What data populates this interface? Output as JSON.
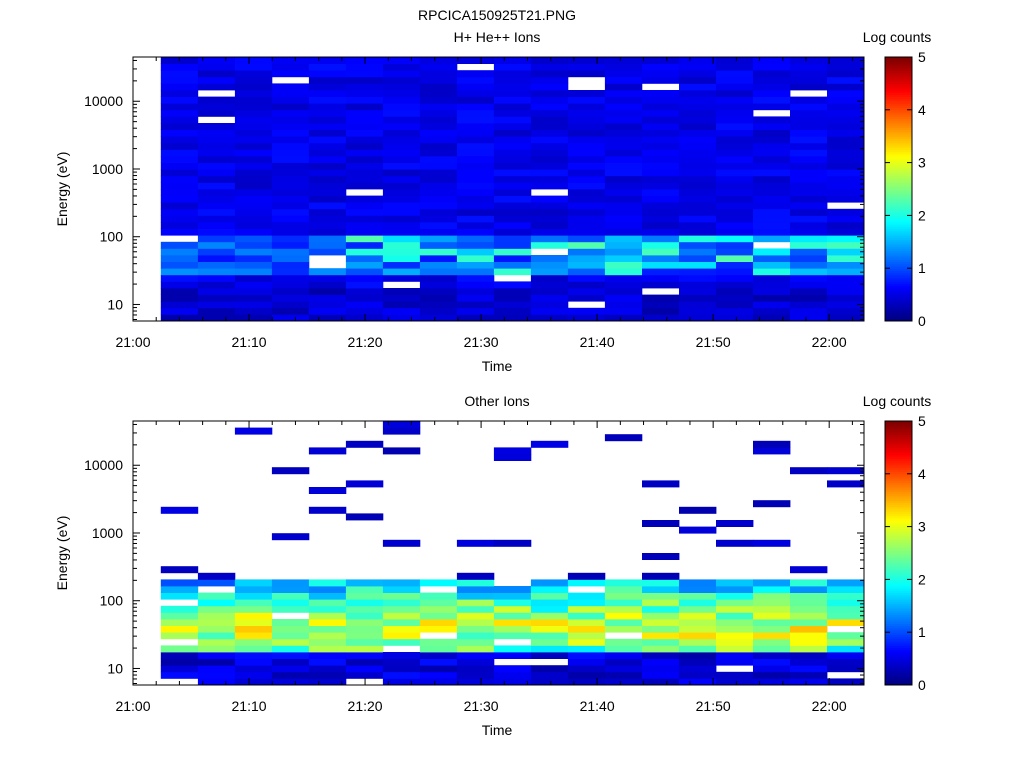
{
  "file_title": "RPCICA150925T21.PNG",
  "chart_data": [
    {
      "type": "heatmap",
      "title": "H+ He++ Ions",
      "xlabel": "Time",
      "ylabel": "Energy (eV)",
      "x_ticks": [
        "21:00",
        "21:10",
        "21:20",
        "21:30",
        "21:40",
        "21:50",
        "22:00"
      ],
      "y_ticks": [
        "10",
        "100",
        "1000",
        "10000"
      ],
      "y_scale": "log",
      "ylim": [
        5.7,
        45000
      ],
      "colorbar": {
        "label": "Log counts",
        "ticks": [
          "0",
          "1",
          "2",
          "3",
          "4",
          "5"
        ],
        "range": [
          0,
          5
        ]
      },
      "time_range": [
        "21:00",
        "22:03"
      ],
      "time_bins": 19,
      "profile": "proton",
      "grid": false
    },
    {
      "type": "heatmap",
      "title": "Other Ions",
      "xlabel": "Time",
      "ylabel": "Energy (eV)",
      "x_ticks": [
        "21:00",
        "21:10",
        "21:20",
        "21:30",
        "21:40",
        "21:50",
        "22:00"
      ],
      "y_ticks": [
        "10",
        "100",
        "1000",
        "10000"
      ],
      "y_scale": "log",
      "ylim": [
        5.7,
        45000
      ],
      "colorbar": {
        "label": "Log counts",
        "ticks": [
          "0",
          "1",
          "2",
          "3",
          "4",
          "5"
        ],
        "range": [
          0,
          5
        ]
      },
      "time_range": [
        "21:00",
        "22:03"
      ],
      "time_bins": 19,
      "profile": "heavy",
      "grid": false
    }
  ]
}
